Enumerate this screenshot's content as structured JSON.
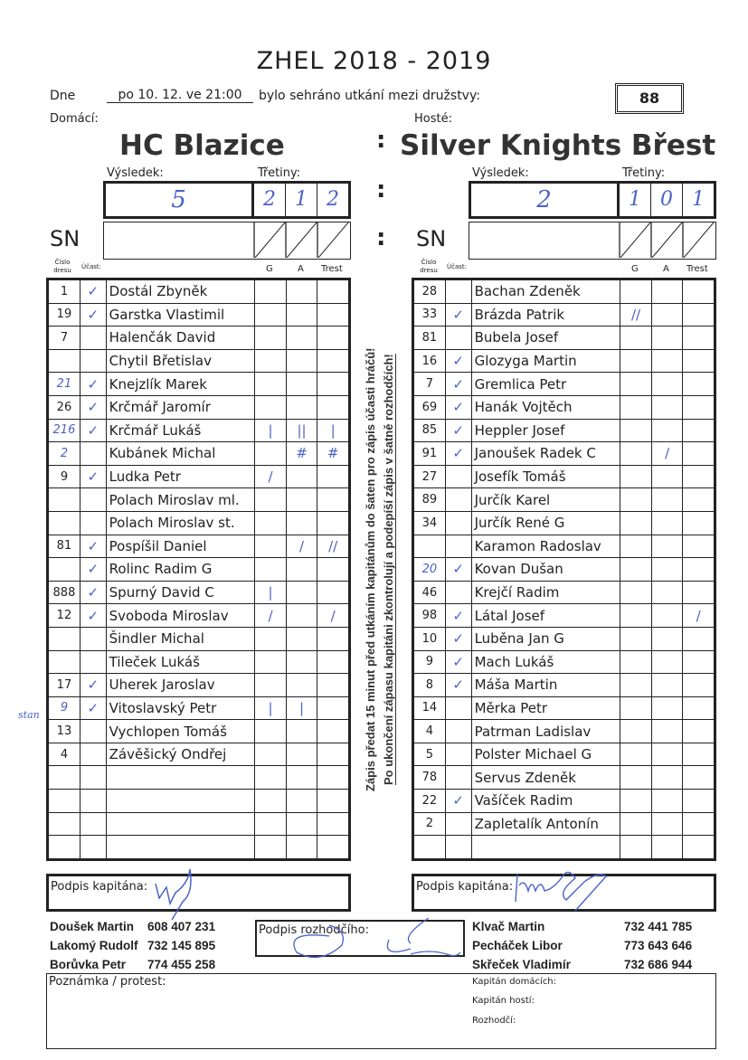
{
  "title": "ZHEL 2018 - 2019",
  "date_label": "Dne",
  "date_value": "po 10. 12. ve 21:00",
  "played_text": "bylo sehráno utkání mezi družstvy:",
  "match_number": "88",
  "home": {
    "label": "Domácí:",
    "team": "HC Blazice",
    "result_label": "Výsledek:",
    "periods_label": "Třetiny:",
    "result": "5",
    "periods": [
      "2",
      "1",
      "2"
    ],
    "sn_label": "SN",
    "col_headers": {
      "num": "Číslo dresu",
      "check": "Účast:",
      "g": "G",
      "a": "A",
      "trest": "Trest"
    },
    "rows": [
      {
        "num": "1",
        "check": "✓",
        "name": "Dostál Zbyněk",
        "g": "",
        "a": "",
        "t": ""
      },
      {
        "num": "19",
        "check": "✓",
        "name": "Garstka Vlastimil",
        "g": "",
        "a": "",
        "t": ""
      },
      {
        "num": "7",
        "check": "",
        "name": "Halenčák David",
        "g": "",
        "a": "",
        "t": ""
      },
      {
        "num": "",
        "check": "",
        "name": "Chytil Břetislav",
        "g": "",
        "a": "",
        "t": ""
      },
      {
        "num": "21",
        "check": "✓",
        "name": "Knejzlík Marek",
        "g": "",
        "a": "",
        "t": "",
        "hand": true
      },
      {
        "num": "26",
        "check": "✓",
        "name": "Krčmář Jaromír",
        "g": "",
        "a": "",
        "t": ""
      },
      {
        "num": "216",
        "check": "✓",
        "name": "Krčmář Lukáš",
        "g": "|",
        "a": "||",
        "t": "|",
        "hand": true
      },
      {
        "num": "2",
        "check": "",
        "name": "Kubánek Michal",
        "g": "",
        "a": "#",
        "t": "#",
        "hand": true
      },
      {
        "num": "9",
        "check": "✓",
        "name": "Ludka Petr",
        "g": "/",
        "a": "",
        "t": ""
      },
      {
        "num": "",
        "check": "",
        "name": "Polach Miroslav ml.",
        "g": "",
        "a": "",
        "t": ""
      },
      {
        "num": "",
        "check": "",
        "name": "Polach Miroslav st.",
        "g": "",
        "a": "",
        "t": ""
      },
      {
        "num": "81",
        "check": "✓",
        "name": "Pospíšil Daniel",
        "g": "",
        "a": "/",
        "t": "//"
      },
      {
        "num": "",
        "check": "✓",
        "name": "Rolinc Radim G",
        "g": "",
        "a": "",
        "t": ""
      },
      {
        "num": "888",
        "check": "✓",
        "name": "Spurný David C",
        "g": "|",
        "a": "",
        "t": ""
      },
      {
        "num": "12",
        "check": "✓",
        "name": "Svoboda Miroslav",
        "g": "/",
        "a": "",
        "t": "/"
      },
      {
        "num": "",
        "check": "",
        "name": "Šindler Michal",
        "g": "",
        "a": "",
        "t": ""
      },
      {
        "num": "",
        "check": "",
        "name": "Tileček Lukáš",
        "g": "",
        "a": "",
        "t": ""
      },
      {
        "num": "17",
        "check": "✓",
        "name": "Uherek Jaroslav",
        "g": "",
        "a": "",
        "t": ""
      },
      {
        "num": "9",
        "check": "✓",
        "name": "Vitoslavský Petr",
        "g": "|",
        "a": "|",
        "t": "",
        "hand": true,
        "note": "stan"
      },
      {
        "num": "13",
        "check": "",
        "name": "Vychlopen Tomáš",
        "g": "",
        "a": "",
        "t": ""
      },
      {
        "num": "4",
        "check": "",
        "name": "Závěšický Ondřej",
        "g": "",
        "a": "",
        "t": ""
      },
      {
        "num": "",
        "check": "",
        "name": "",
        "g": "",
        "a": "",
        "t": ""
      },
      {
        "num": "",
        "check": "",
        "name": "",
        "g": "",
        "a": "",
        "t": ""
      },
      {
        "num": "",
        "check": "",
        "name": "",
        "g": "",
        "a": "",
        "t": ""
      },
      {
        "num": "",
        "check": "",
        "name": "",
        "g": "",
        "a": "",
        "t": ""
      }
    ],
    "captain_sign_label": "Podpis kapitána:"
  },
  "away": {
    "label": "Hosté:",
    "team": "Silver Knights Břest",
    "result_label": "Výsledek:",
    "periods_label": "Třetiny:",
    "result": "2",
    "periods": [
      "1",
      "0",
      "1"
    ],
    "sn_label": "SN",
    "col_headers": {
      "num": "Číslo dresu",
      "check": "Účast:",
      "g": "G",
      "a": "A",
      "trest": "Trest"
    },
    "rows": [
      {
        "num": "28",
        "check": "",
        "name": "Bachan Zdeněk",
        "g": "",
        "a": "",
        "t": ""
      },
      {
        "num": "33",
        "check": "✓",
        "name": "Brázda Patrik",
        "g": "//",
        "a": "",
        "t": ""
      },
      {
        "num": "81",
        "check": "",
        "name": "Bubela Josef",
        "g": "",
        "a": "",
        "t": ""
      },
      {
        "num": "16",
        "check": "✓",
        "name": "Glozyga Martin",
        "g": "",
        "a": "",
        "t": ""
      },
      {
        "num": "7",
        "check": "✓",
        "name": "Gremlica Petr",
        "g": "",
        "a": "",
        "t": ""
      },
      {
        "num": "69",
        "check": "✓",
        "name": "Hanák Vojtěch",
        "g": "",
        "a": "",
        "t": ""
      },
      {
        "num": "85",
        "check": "✓",
        "name": "Heppler Josef",
        "g": "",
        "a": "",
        "t": ""
      },
      {
        "num": "91",
        "check": "✓",
        "name": "Janoušek Radek C",
        "g": "",
        "a": "/",
        "t": ""
      },
      {
        "num": "27",
        "check": "",
        "name": "Josefík Tomáš",
        "g": "",
        "a": "",
        "t": ""
      },
      {
        "num": "89",
        "check": "",
        "name": "Jurčík Karel",
        "g": "",
        "a": "",
        "t": ""
      },
      {
        "num": "34",
        "check": "",
        "name": "Jurčík René G",
        "g": "",
        "a": "",
        "t": ""
      },
      {
        "num": "",
        "check": "",
        "name": "Karamon Radoslav",
        "g": "",
        "a": "",
        "t": ""
      },
      {
        "num": "20",
        "check": "✓",
        "name": "Kovan Dušan",
        "g": "",
        "a": "",
        "t": "",
        "hand": true
      },
      {
        "num": "46",
        "check": "",
        "name": "Krejčí Radim",
        "g": "",
        "a": "",
        "t": ""
      },
      {
        "num": "98",
        "check": "✓",
        "name": "Látal Josef",
        "g": "",
        "a": "",
        "t": "/"
      },
      {
        "num": "10",
        "check": "✓",
        "name": "Luběna Jan G",
        "g": "",
        "a": "",
        "t": ""
      },
      {
        "num": "9",
        "check": "✓",
        "name": "Mach Lukáš",
        "g": "",
        "a": "",
        "t": ""
      },
      {
        "num": "8",
        "check": "✓",
        "name": "Máša Martin",
        "g": "",
        "a": "",
        "t": ""
      },
      {
        "num": "14",
        "check": "",
        "name": "Měrka Petr",
        "g": "",
        "a": "",
        "t": ""
      },
      {
        "num": "4",
        "check": "",
        "name": "Patrman Ladislav",
        "g": "",
        "a": "",
        "t": ""
      },
      {
        "num": "5",
        "check": "",
        "name": "Polster Michael G",
        "g": "",
        "a": "",
        "t": ""
      },
      {
        "num": "78",
        "check": "",
        "name": "Servus Zdeněk",
        "g": "",
        "a": "",
        "t": ""
      },
      {
        "num": "22",
        "check": "✓",
        "name": "Vašíček Radim",
        "g": "",
        "a": "",
        "t": ""
      },
      {
        "num": "2",
        "check": "",
        "name": "Zapletalík Antonín",
        "g": "",
        "a": "",
        "t": ""
      },
      {
        "num": "",
        "check": "",
        "name": "",
        "g": "",
        "a": "",
        "t": ""
      }
    ],
    "captain_sign_label": "Podpis kapitána:"
  },
  "notice_1": "Zápis předat 15 minut před utkáním kapitánům do šaten pro zápis účasti hráčů!",
  "notice_2": "Po ukončení zápasu kapitáni zkontrolují a podepíší zápis v šatně rozhodčích!",
  "referee_sign_label": "Podpis rozhodčího:",
  "contacts_left": [
    {
      "name": "Doušek Martin",
      "phone": "608 407 231"
    },
    {
      "name": "Lakomý Rudolf",
      "phone": "732 145 895"
    },
    {
      "name": "Borůvka Petr",
      "phone": "774 455 258"
    }
  ],
  "contacts_right": [
    {
      "name": "Klvač Martin",
      "phone": "732 441 785"
    },
    {
      "name": "Pecháček Libor",
      "phone": "773 643 646"
    },
    {
      "name": "Skřeček Vladimír",
      "phone": "732 686 944"
    }
  ],
  "note_label": "Poznámka / protest:",
  "note_fields": [
    "Kapitán domácích:",
    "Kapitán hostí:",
    "Rozhodčí:"
  ],
  "ink_color": "#4a62c8"
}
